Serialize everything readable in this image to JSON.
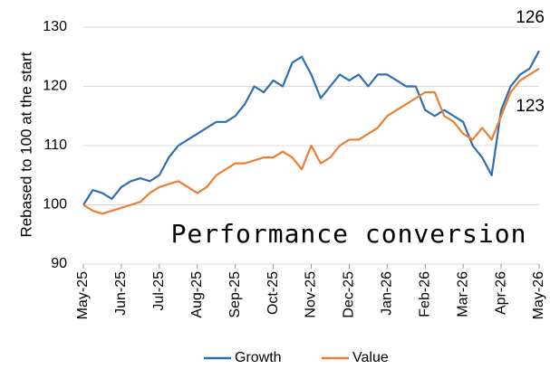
{
  "chart_data": {
    "type": "line",
    "y_axis_label": "Rebased to 100 at the start",
    "annotations": [
      "126",
      "123",
      "Performance conversion"
    ],
    "categories": [
      "May-25",
      null,
      null,
      null,
      "Jun-25",
      null,
      null,
      null,
      "Jul-25",
      null,
      null,
      null,
      "Aug-25",
      null,
      null,
      null,
      "Sep-25",
      null,
      null,
      null,
      "Oct-25",
      null,
      null,
      null,
      "Nov-25",
      null,
      null,
      null,
      "Dec-25",
      null,
      null,
      null,
      "Jan-26",
      null,
      null,
      null,
      "Feb-26",
      null,
      null,
      null,
      "Mar-26",
      null,
      null,
      null,
      "Apr-26",
      null,
      null,
      null,
      "May-26"
    ],
    "series": [
      {
        "name": "Growth",
        "color": "#2e6db4",
        "values": [
          100,
          102.5,
          102,
          101,
          103,
          104,
          104.5,
          104,
          105,
          108,
          110,
          111,
          112,
          113,
          114,
          114,
          115,
          117,
          120,
          119,
          121,
          120,
          124,
          125,
          122,
          118,
          120,
          122,
          121,
          122,
          120,
          122,
          122,
          121,
          120,
          120,
          116,
          115,
          116,
          115,
          114,
          110,
          108,
          105,
          116,
          120,
          122,
          123,
          126
        ]
      },
      {
        "name": "Value",
        "color": "#ed7d31",
        "values": [
          100,
          99,
          98.5,
          99,
          99.5,
          100,
          100.5,
          102,
          103,
          103.5,
          104,
          103,
          102,
          103,
          105,
          106,
          107,
          107,
          107.5,
          108,
          108,
          109,
          108,
          106,
          110,
          107,
          108,
          110,
          111,
          111,
          112,
          113,
          115,
          116,
          117,
          118,
          119,
          119,
          115,
          114,
          112,
          111,
          113,
          111,
          115,
          119,
          121,
          122,
          123
        ]
      }
    ],
    "ylim": [
      90,
      130
    ],
    "yticks": [
      90,
      100,
      110,
      120,
      130
    ],
    "grid": true,
    "legend": "bottom"
  }
}
